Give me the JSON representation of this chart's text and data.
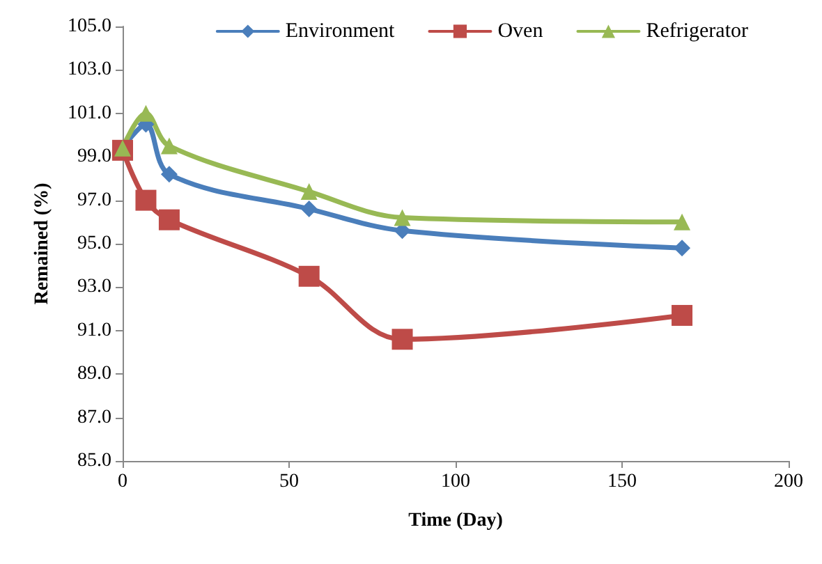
{
  "chart_data": {
    "type": "line",
    "xlabel": "Time (Day)",
    "ylabel": "Remained (%)",
    "x": [
      0,
      7,
      14,
      56,
      84,
      168
    ],
    "series": [
      {
        "name": "Environment",
        "color": "#4a7ebb",
        "marker": "diamond",
        "values": [
          99.4,
          100.5,
          98.2,
          96.6,
          95.6,
          94.8
        ]
      },
      {
        "name": "Oven",
        "color": "#be4b48",
        "marker": "square",
        "values": [
          99.3,
          97.0,
          96.1,
          93.5,
          90.6,
          91.7
        ]
      },
      {
        "name": "Refrigerator",
        "color": "#98b954",
        "marker": "triangle",
        "values": [
          99.4,
          101.0,
          99.5,
          97.4,
          96.2,
          96.0
        ]
      }
    ],
    "xlim": [
      0,
      200
    ],
    "xticks": [
      0,
      50,
      100,
      150,
      200
    ],
    "ylim": [
      85,
      105
    ],
    "yticks": [
      {
        "value": 85,
        "label": "85.0"
      },
      {
        "value": 87,
        "label": "87.0"
      },
      {
        "value": 89,
        "label": "89.0"
      },
      {
        "value": 91,
        "label": "91.0"
      },
      {
        "value": 93,
        "label": "93.0"
      },
      {
        "value": 95,
        "label": "95.0"
      },
      {
        "value": 97,
        "label": "97.0"
      },
      {
        "value": 99,
        "label": "99.0"
      },
      {
        "value": 101,
        "label": "101.0"
      },
      {
        "value": 103,
        "label": "103.0"
      },
      {
        "value": 105,
        "label": "105.0"
      }
    ],
    "grid": false,
    "legend": "top right",
    "line_style": "solid"
  }
}
